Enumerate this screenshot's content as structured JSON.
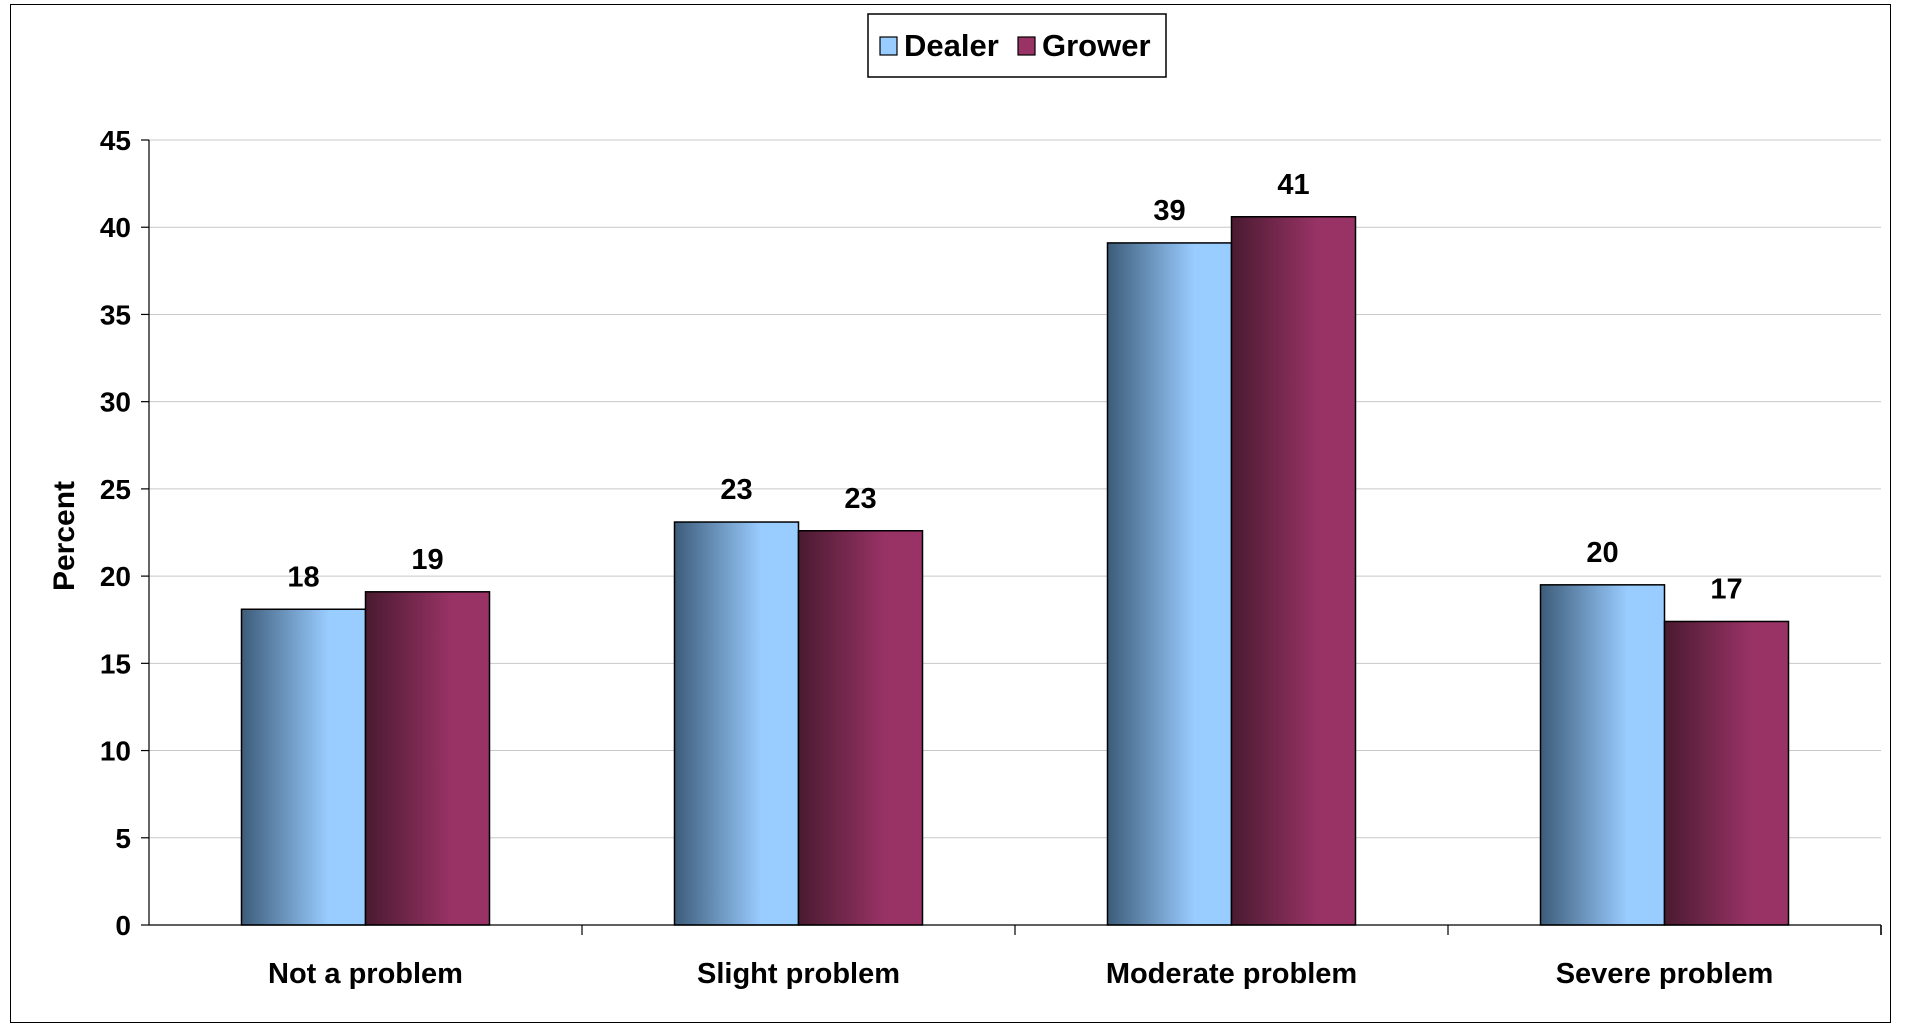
{
  "chart_data": {
    "type": "bar",
    "categories": [
      "Not a problem",
      "Slight problem",
      "Moderate problem",
      "Severe problem"
    ],
    "series": [
      {
        "name": "Dealer",
        "values": [
          18,
          23,
          39,
          20
        ],
        "plotted": [
          18.1,
          23.1,
          39.1,
          19.5
        ],
        "color": "#99CCFF"
      },
      {
        "name": "Grower",
        "values": [
          19,
          23,
          41,
          17
        ],
        "plotted": [
          19.1,
          22.6,
          40.6,
          17.4
        ],
        "color": "#993366"
      }
    ],
    "ylabel": "Percent",
    "xlabel": "",
    "ylim": [
      0,
      45
    ],
    "yticks": [
      "0",
      "5",
      "10",
      "15",
      "20",
      "25",
      "30",
      "35",
      "40",
      "45"
    ],
    "grid": true,
    "legend_position": "top-center"
  }
}
